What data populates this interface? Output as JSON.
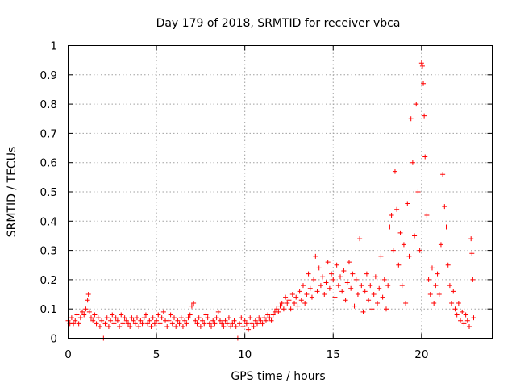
{
  "chart_data": {
    "type": "scatter",
    "title": "Day 179 of 2018, SRMTID for receiver vbca",
    "xlabel": "GPS time / hours",
    "ylabel": "SRMTID / TECUs",
    "xlim": [
      0,
      24
    ],
    "ylim": [
      0,
      1
    ],
    "xticks": [
      "0",
      "5",
      "10",
      "15",
      "20"
    ],
    "yticks": [
      "0",
      "0.1",
      "0.2",
      "0.3",
      "0.4",
      "0.5",
      "0.6",
      "0.7",
      "0.8",
      "0.9",
      "1"
    ],
    "xtick_values": [
      0,
      5,
      10,
      15,
      20
    ],
    "ytick_values": [
      0,
      0.1,
      0.2,
      0.3,
      0.4,
      0.5,
      0.6,
      0.7,
      0.8,
      0.9,
      1.0
    ],
    "grid": true,
    "marker": "+",
    "color": "#ff0000",
    "series": [
      {
        "name": "vbca",
        "points": [
          [
            0.0,
            0.06
          ],
          [
            0.1,
            0.05
          ],
          [
            0.2,
            0.07
          ],
          [
            0.3,
            0.05
          ],
          [
            0.4,
            0.06
          ],
          [
            0.5,
            0.08
          ],
          [
            0.6,
            0.05
          ],
          [
            0.7,
            0.07
          ],
          [
            0.8,
            0.09
          ],
          [
            0.9,
            0.08
          ],
          [
            1.0,
            0.1
          ],
          [
            1.1,
            0.13
          ],
          [
            1.15,
            0.15
          ],
          [
            1.2,
            0.09
          ],
          [
            1.3,
            0.07
          ],
          [
            1.4,
            0.06
          ],
          [
            1.5,
            0.08
          ],
          [
            1.6,
            0.05
          ],
          [
            1.7,
            0.07
          ],
          [
            1.8,
            0.04
          ],
          [
            1.9,
            0.06
          ],
          [
            2.0,
            0.0
          ],
          [
            2.1,
            0.05
          ],
          [
            2.2,
            0.07
          ],
          [
            2.3,
            0.04
          ],
          [
            2.4,
            0.06
          ],
          [
            2.5,
            0.08
          ],
          [
            2.6,
            0.05
          ],
          [
            2.7,
            0.07
          ],
          [
            2.8,
            0.06
          ],
          [
            2.9,
            0.04
          ],
          [
            3.0,
            0.08
          ],
          [
            3.1,
            0.05
          ],
          [
            3.2,
            0.07
          ],
          [
            3.3,
            0.06
          ],
          [
            3.4,
            0.05
          ],
          [
            3.5,
            0.04
          ],
          [
            3.6,
            0.07
          ],
          [
            3.7,
            0.06
          ],
          [
            3.8,
            0.05
          ],
          [
            3.9,
            0.07
          ],
          [
            4.0,
            0.04
          ],
          [
            4.1,
            0.06
          ],
          [
            4.2,
            0.05
          ],
          [
            4.3,
            0.07
          ],
          [
            4.4,
            0.08
          ],
          [
            4.5,
            0.05
          ],
          [
            4.6,
            0.06
          ],
          [
            4.7,
            0.04
          ],
          [
            4.8,
            0.07
          ],
          [
            4.9,
            0.05
          ],
          [
            5.0,
            0.06
          ],
          [
            5.1,
            0.08
          ],
          [
            5.2,
            0.05
          ],
          [
            5.3,
            0.07
          ],
          [
            5.4,
            0.09
          ],
          [
            5.5,
            0.06
          ],
          [
            5.6,
            0.04
          ],
          [
            5.7,
            0.06
          ],
          [
            5.8,
            0.08
          ],
          [
            5.9,
            0.05
          ],
          [
            6.0,
            0.07
          ],
          [
            6.1,
            0.04
          ],
          [
            6.2,
            0.06
          ],
          [
            6.3,
            0.05
          ],
          [
            6.4,
            0.07
          ],
          [
            6.5,
            0.04
          ],
          [
            6.6,
            0.06
          ],
          [
            6.7,
            0.05
          ],
          [
            6.8,
            0.07
          ],
          [
            6.9,
            0.08
          ],
          [
            7.0,
            0.11
          ],
          [
            7.1,
            0.12
          ],
          [
            7.2,
            0.06
          ],
          [
            7.3,
            0.05
          ],
          [
            7.4,
            0.07
          ],
          [
            7.5,
            0.04
          ],
          [
            7.6,
            0.06
          ],
          [
            7.7,
            0.05
          ],
          [
            7.8,
            0.08
          ],
          [
            7.9,
            0.07
          ],
          [
            8.0,
            0.05
          ],
          [
            8.1,
            0.04
          ],
          [
            8.2,
            0.06
          ],
          [
            8.3,
            0.05
          ],
          [
            8.4,
            0.07
          ],
          [
            8.5,
            0.09
          ],
          [
            8.6,
            0.06
          ],
          [
            8.7,
            0.05
          ],
          [
            8.8,
            0.04
          ],
          [
            8.9,
            0.06
          ],
          [
            9.0,
            0.05
          ],
          [
            9.1,
            0.07
          ],
          [
            9.2,
            0.04
          ],
          [
            9.3,
            0.05
          ],
          [
            9.4,
            0.06
          ],
          [
            9.5,
            0.04
          ],
          [
            9.6,
            0.0
          ],
          [
            9.7,
            0.05
          ],
          [
            9.8,
            0.07
          ],
          [
            9.9,
            0.04
          ],
          [
            10.0,
            0.06
          ],
          [
            10.1,
            0.05
          ],
          [
            10.2,
            0.03
          ],
          [
            10.3,
            0.07
          ],
          [
            10.4,
            0.05
          ],
          [
            10.5,
            0.04
          ],
          [
            10.6,
            0.06
          ],
          [
            10.7,
            0.05
          ],
          [
            10.8,
            0.07
          ],
          [
            10.9,
            0.06
          ],
          [
            11.0,
            0.05
          ],
          [
            11.1,
            0.07
          ],
          [
            11.2,
            0.06
          ],
          [
            11.3,
            0.08
          ],
          [
            11.4,
            0.07
          ],
          [
            11.5,
            0.06
          ],
          [
            11.6,
            0.08
          ],
          [
            11.7,
            0.09
          ],
          [
            11.8,
            0.1
          ],
          [
            11.9,
            0.09
          ],
          [
            12.0,
            0.11
          ],
          [
            12.1,
            0.12
          ],
          [
            12.2,
            0.1
          ],
          [
            12.3,
            0.14
          ],
          [
            12.4,
            0.12
          ],
          [
            12.5,
            0.13
          ],
          [
            12.6,
            0.1
          ],
          [
            12.7,
            0.15
          ],
          [
            12.8,
            0.12
          ],
          [
            12.9,
            0.14
          ],
          [
            13.0,
            0.11
          ],
          [
            13.1,
            0.16
          ],
          [
            13.2,
            0.13
          ],
          [
            13.3,
            0.18
          ],
          [
            13.4,
            0.12
          ],
          [
            13.5,
            0.15
          ],
          [
            13.6,
            0.22
          ],
          [
            13.7,
            0.17
          ],
          [
            13.8,
            0.14
          ],
          [
            13.9,
            0.2
          ],
          [
            14.0,
            0.28
          ],
          [
            14.1,
            0.16
          ],
          [
            14.2,
            0.24
          ],
          [
            14.3,
            0.18
          ],
          [
            14.4,
            0.21
          ],
          [
            14.5,
            0.15
          ],
          [
            14.6,
            0.19
          ],
          [
            14.7,
            0.26
          ],
          [
            14.8,
            0.17
          ],
          [
            14.9,
            0.22
          ],
          [
            15.0,
            0.2
          ],
          [
            15.1,
            0.14
          ],
          [
            15.2,
            0.25
          ],
          [
            15.3,
            0.18
          ],
          [
            15.4,
            0.21
          ],
          [
            15.5,
            0.16
          ],
          [
            15.6,
            0.23
          ],
          [
            15.7,
            0.13
          ],
          [
            15.8,
            0.19
          ],
          [
            15.9,
            0.26
          ],
          [
            16.0,
            0.17
          ],
          [
            16.1,
            0.22
          ],
          [
            16.2,
            0.11
          ],
          [
            16.3,
            0.2
          ],
          [
            16.4,
            0.15
          ],
          [
            16.5,
            0.34
          ],
          [
            16.6,
            0.18
          ],
          [
            16.7,
            0.09
          ],
          [
            16.8,
            0.16
          ],
          [
            16.9,
            0.22
          ],
          [
            17.0,
            0.13
          ],
          [
            17.1,
            0.18
          ],
          [
            17.2,
            0.1
          ],
          [
            17.3,
            0.15
          ],
          [
            17.4,
            0.21
          ],
          [
            17.5,
            0.12
          ],
          [
            17.6,
            0.17
          ],
          [
            17.7,
            0.28
          ],
          [
            17.8,
            0.14
          ],
          [
            17.9,
            0.2
          ],
          [
            18.0,
            0.1
          ],
          [
            18.1,
            0.18
          ],
          [
            18.2,
            0.38
          ],
          [
            18.3,
            0.42
          ],
          [
            18.4,
            0.3
          ],
          [
            18.5,
            0.57
          ],
          [
            18.6,
            0.44
          ],
          [
            18.7,
            0.25
          ],
          [
            18.8,
            0.36
          ],
          [
            18.9,
            0.18
          ],
          [
            19.0,
            0.32
          ],
          [
            19.1,
            0.12
          ],
          [
            19.2,
            0.46
          ],
          [
            19.3,
            0.28
          ],
          [
            19.4,
            0.75
          ],
          [
            19.5,
            0.6
          ],
          [
            19.6,
            0.35
          ],
          [
            19.7,
            0.8
          ],
          [
            19.8,
            0.5
          ],
          [
            19.9,
            0.3
          ],
          [
            20.0,
            0.94
          ],
          [
            20.05,
            0.93
          ],
          [
            20.1,
            0.87
          ],
          [
            20.15,
            0.76
          ],
          [
            20.2,
            0.62
          ],
          [
            20.3,
            0.42
          ],
          [
            20.4,
            0.2
          ],
          [
            20.5,
            0.15
          ],
          [
            20.6,
            0.24
          ],
          [
            20.7,
            0.12
          ],
          [
            20.8,
            0.18
          ],
          [
            20.9,
            0.22
          ],
          [
            21.0,
            0.15
          ],
          [
            21.1,
            0.32
          ],
          [
            21.2,
            0.56
          ],
          [
            21.3,
            0.45
          ],
          [
            21.4,
            0.38
          ],
          [
            21.5,
            0.25
          ],
          [
            21.6,
            0.18
          ],
          [
            21.7,
            0.12
          ],
          [
            21.8,
            0.16
          ],
          [
            21.9,
            0.1
          ],
          [
            22.0,
            0.08
          ],
          [
            22.1,
            0.12
          ],
          [
            22.2,
            0.06
          ],
          [
            22.3,
            0.09
          ],
          [
            22.4,
            0.05
          ],
          [
            22.5,
            0.08
          ],
          [
            22.6,
            0.06
          ],
          [
            22.7,
            0.04
          ],
          [
            22.8,
            0.34
          ],
          [
            22.85,
            0.29
          ],
          [
            22.9,
            0.2
          ],
          [
            22.95,
            0.07
          ]
        ]
      }
    ]
  }
}
